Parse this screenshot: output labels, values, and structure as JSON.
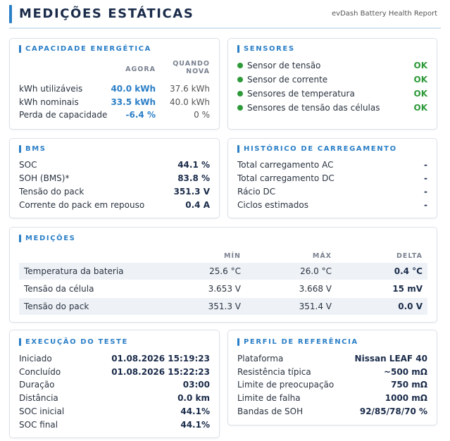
{
  "header": {
    "title": "MEDIÇÕES ESTÁTICAS",
    "subtitle": "evDash Battery Health Report"
  },
  "capacity": {
    "title": "CAPACIDADE ENERGÉTICA",
    "columns": [
      "AGORA",
      "QUANDO NOVA"
    ],
    "rows": [
      [
        "kWh utilizáveis",
        "40.0 kWh",
        "37.6 kWh"
      ],
      [
        "kWh nominais",
        "33.5 kWh",
        "40.0 kWh"
      ],
      [
        "Perda de capacidade",
        "-6.4 %",
        "0 %"
      ]
    ]
  },
  "sensors": {
    "title": "SENSORES",
    "rows": [
      [
        "Sensor de tensão",
        "OK"
      ],
      [
        "Sensor de corrente",
        "OK"
      ],
      [
        "Sensores de temperatura",
        "OK"
      ],
      [
        "Sensores de tensão das células",
        "OK"
      ]
    ]
  },
  "bms": {
    "title": "BMS",
    "rows": [
      [
        "SOC",
        "44.1 %"
      ],
      [
        "SOH (BMS)*",
        "83.8 %"
      ],
      [
        "Tensão do pack",
        "351.3 V"
      ],
      [
        "Corrente do pack em repouso",
        "0.4 A"
      ]
    ]
  },
  "charging_history": {
    "title": "HISTÓRICO DE CARREGAMENTO",
    "rows": [
      [
        "Total carregamento AC",
        "-"
      ],
      [
        "Total carregamento DC",
        "-"
      ],
      [
        "Rácio DC",
        "-"
      ],
      [
        "Ciclos estimados",
        "-"
      ]
    ]
  },
  "measurements": {
    "title": "MEDIÇÕES",
    "columns": [
      "MÍN",
      "MÁX",
      "DELTA"
    ],
    "rows": [
      [
        "Temperatura da bateria",
        "25.6 °C",
        "26.0 °C",
        "0.4 °C"
      ],
      [
        "Tensão da célula",
        "3.653 V",
        "3.668 V",
        "15 mV"
      ],
      [
        "Tensão do pack",
        "351.3 V",
        "351.4 V",
        "0.0 V"
      ]
    ]
  },
  "test_run": {
    "title": "EXECUÇÃO DO TESTE",
    "rows": [
      [
        "Iniciado",
        "01.08.2026 15:19:23"
      ],
      [
        "Concluído",
        "01.08.2026 15:22:23"
      ],
      [
        "Duração",
        "03:00"
      ],
      [
        "Distância",
        "0.0 km"
      ],
      [
        "SOC inicial",
        "44.1%"
      ],
      [
        "SOC final",
        "44.1%"
      ]
    ]
  },
  "reference_profile": {
    "title": "PERFIL DE REFERÊNCIA",
    "rows": [
      [
        "Plataforma",
        "Nissan LEAF 40"
      ],
      [
        "Resistência típica",
        "~500 mΩ"
      ],
      [
        "Limite de preocupação",
        "750 mΩ"
      ],
      [
        "Limite de falha",
        "1000 mΩ"
      ],
      [
        "Bandas de SOH",
        "92/85/78/70 %"
      ]
    ]
  }
}
